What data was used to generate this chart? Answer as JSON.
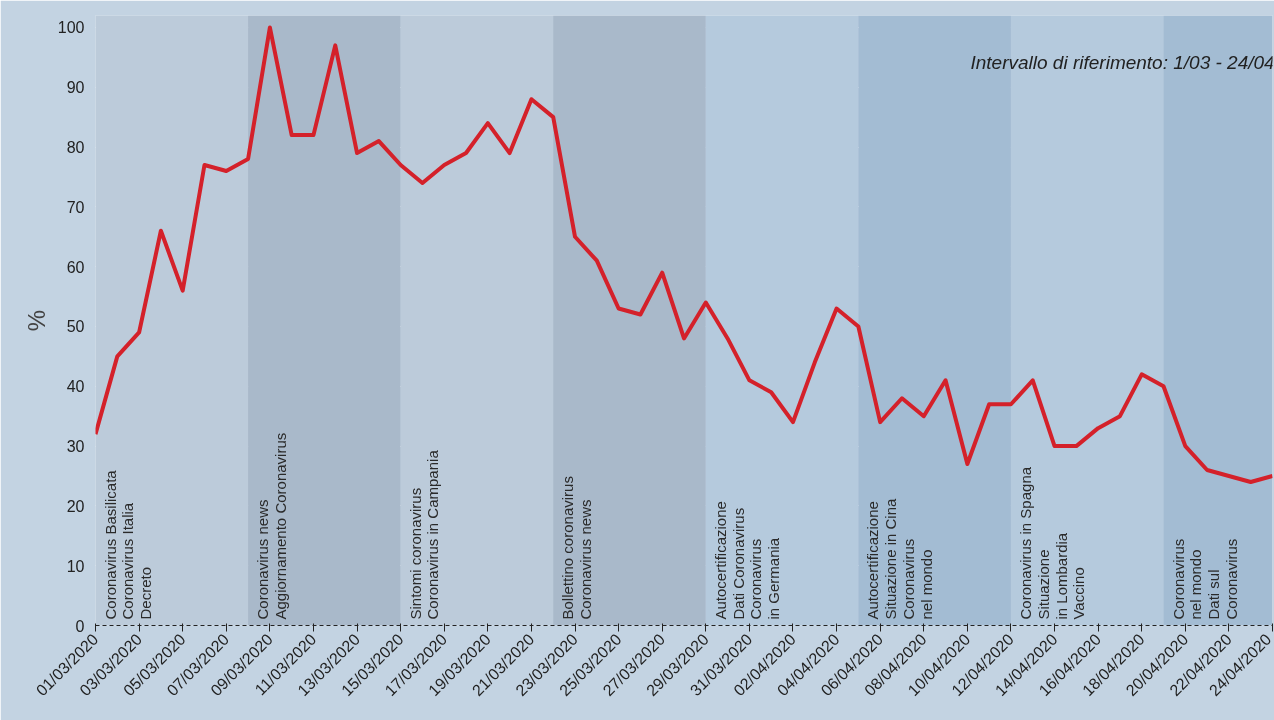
{
  "chart_data": {
    "type": "line",
    "ylabel": "%",
    "x": [
      "2020-03-01",
      "2020-03-02",
      "2020-03-03",
      "2020-03-04",
      "2020-03-05",
      "2020-03-06",
      "2020-03-07",
      "2020-03-08",
      "2020-03-09",
      "2020-03-10",
      "2020-03-11",
      "2020-03-12",
      "2020-03-13",
      "2020-03-14",
      "2020-03-15",
      "2020-03-16",
      "2020-03-17",
      "2020-03-18",
      "2020-03-19",
      "2020-03-20",
      "2020-03-21",
      "2020-03-22",
      "2020-03-23",
      "2020-03-24",
      "2020-03-25",
      "2020-03-26",
      "2020-03-27",
      "2020-03-28",
      "2020-03-29",
      "2020-03-30",
      "2020-03-31",
      "2020-04-01",
      "2020-04-02",
      "2020-04-03",
      "2020-04-04",
      "2020-04-05",
      "2020-04-06",
      "2020-04-07",
      "2020-04-08",
      "2020-04-09",
      "2020-04-10",
      "2020-04-11",
      "2020-04-12",
      "2020-04-13",
      "2020-04-14",
      "2020-04-15",
      "2020-04-16",
      "2020-04-17",
      "2020-04-18",
      "2020-04-19",
      "2020-04-20",
      "2020-04-21",
      "2020-04-22",
      "2020-04-23",
      "2020-04-24"
    ],
    "series": [
      {
        "color": "#d4212a",
        "values": [
          32,
          45,
          49,
          66,
          56,
          77,
          76,
          78,
          100,
          82,
          82,
          97,
          79,
          81,
          77,
          74,
          77,
          79,
          84,
          79,
          88,
          85,
          65,
          61,
          53,
          52,
          59,
          48,
          54,
          48,
          41,
          39,
          34,
          44,
          53,
          50,
          34,
          38,
          35,
          41,
          27,
          37,
          37,
          41,
          30,
          30,
          33,
          35,
          42,
          40,
          30,
          26,
          25,
          24,
          25
        ]
      }
    ],
    "xlim": [
      "2020-03-01",
      "2020-04-24"
    ],
    "xticks": [
      {
        "value": "2020-03-01",
        "label": "01/03/2020"
      },
      {
        "value": "2020-03-03",
        "label": "03/03/2020"
      },
      {
        "value": "2020-03-05",
        "label": "05/03/2020"
      },
      {
        "value": "2020-03-07",
        "label": "07/03/2020"
      },
      {
        "value": "2020-03-09",
        "label": "09/03/2020"
      },
      {
        "value": "2020-03-11",
        "label": "11/03/2020"
      },
      {
        "value": "2020-03-13",
        "label": "13/03/2020"
      },
      {
        "value": "2020-03-15",
        "label": "15/03/2020"
      },
      {
        "value": "2020-03-17",
        "label": "17/03/2020"
      },
      {
        "value": "2020-03-19",
        "label": "19/03/2020"
      },
      {
        "value": "2020-03-21",
        "label": "21/03/2020"
      },
      {
        "value": "2020-03-23",
        "label": "23/03/2020"
      },
      {
        "value": "2020-03-25",
        "label": "25/03/2020"
      },
      {
        "value": "2020-03-27",
        "label": "27/03/2020"
      },
      {
        "value": "2020-03-29",
        "label": "29/03/2020"
      },
      {
        "value": "2020-03-31",
        "label": "31/03/2020"
      },
      {
        "value": "2020-04-02",
        "label": "02/04/2020"
      },
      {
        "value": "2020-04-04",
        "label": "04/04/2020"
      },
      {
        "value": "2020-04-06",
        "label": "06/04/2020"
      },
      {
        "value": "2020-04-08",
        "label": "08/04/2020"
      },
      {
        "value": "2020-04-10",
        "label": "10/04/2020"
      },
      {
        "value": "2020-04-12",
        "label": "12/04/2020"
      },
      {
        "value": "2020-04-14",
        "label": "14/04/2020"
      },
      {
        "value": "2020-04-16",
        "label": "16/04/2020"
      },
      {
        "value": "2020-04-18",
        "label": "18/04/2020"
      },
      {
        "value": "2020-04-20",
        "label": "20/04/2020"
      },
      {
        "value": "2020-04-22",
        "label": "22/04/2020"
      },
      {
        "value": "2020-04-24",
        "label": "24/04/2020"
      }
    ],
    "ylim": [
      0,
      102
    ],
    "yticks": [
      0,
      10,
      20,
      30,
      40,
      50,
      60,
      70,
      80,
      90,
      100
    ],
    "grid": "y",
    "marker": "none",
    "line_style": "solid",
    "bands": [
      {
        "axis": "x",
        "from": "2020-03-01",
        "to": "2020-03-08",
        "color": "#bccbda",
        "label": "Coronavirus Basilicata\nCoronavirus Italia\nDecreto"
      },
      {
        "axis": "x",
        "from": "2020-03-08",
        "to": "2020-03-15",
        "color": "#a9b9ca",
        "label": "Coronavirus news\nAggiornamento Coronavirus"
      },
      {
        "axis": "x",
        "from": "2020-03-15",
        "to": "2020-03-22",
        "color": "#bccbda",
        "label": "Sintomi coronavirus\nCoronavirus in Campania"
      },
      {
        "axis": "x",
        "from": "2020-03-22",
        "to": "2020-03-29",
        "color": "#a9b9ca",
        "label": "Bollettino coronavirus\nCoronavirus news"
      },
      {
        "axis": "x",
        "from": "2020-03-29",
        "to": "2020-04-05",
        "color": "#b5cadd",
        "label": "Autocertificazione\nDati Coronavirus\nCoronavirus\nin Germania"
      },
      {
        "axis": "x",
        "from": "2020-04-05",
        "to": "2020-04-12",
        "color": "#a3bcd3",
        "label": "Autocertificazione\nSituazione in Cina\nCoronavirus\nnel mondo"
      },
      {
        "axis": "x",
        "from": "2020-04-12",
        "to": "2020-04-19",
        "color": "#b5cadd",
        "label": "Coronavirus in Spagna\nSituazione\nin Lombardia\nVaccino"
      },
      {
        "axis": "x",
        "from": "2020-04-19",
        "to": "2020-04-24",
        "color": "#a3bcd3",
        "label": "Coronavirus\nnel mondo\nDati sul\nCoronavirus"
      }
    ],
    "annotations": [
      "Intervallo di riferimento: 1/03 - 24/04"
    ]
  }
}
